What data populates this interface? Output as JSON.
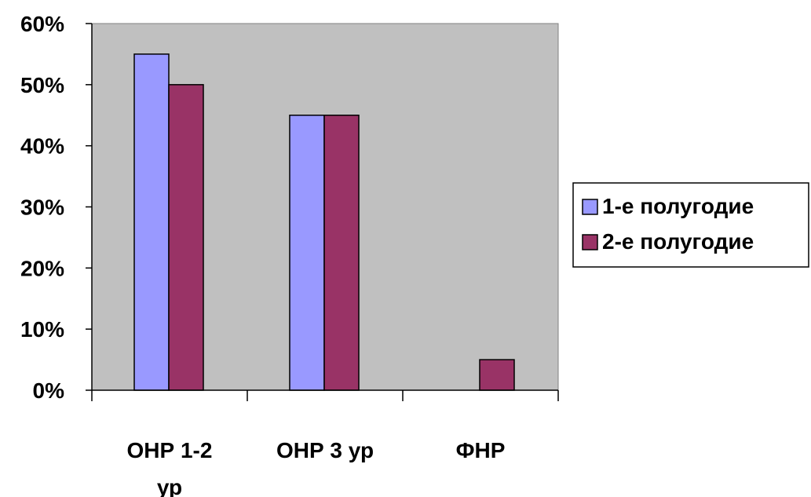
{
  "chart_data": {
    "type": "bar",
    "categories": [
      "ОНР 1-2 ур",
      "ОНР 3 ур",
      "ФНР"
    ],
    "category_lines": [
      [
        "ОНР 1-2",
        "ур"
      ],
      [
        "ОНР 3 ур"
      ],
      [
        "ФНР"
      ]
    ],
    "series": [
      {
        "name": "1-е полугодие",
        "values": [
          0.55,
          0.45,
          0.0
        ],
        "color": "#9999ff"
      },
      {
        "name": "2-е полугодие",
        "values": [
          0.5,
          0.45,
          0.05
        ],
        "color": "#993366"
      }
    ],
    "ylim": [
      0,
      0.6
    ],
    "yticks": [
      0,
      0.1,
      0.2,
      0.3,
      0.4,
      0.5,
      0.6
    ],
    "ytick_labels": [
      "0%",
      "10%",
      "20%",
      "30%",
      "40%",
      "50%",
      "60%"
    ],
    "plot_background": "#c0c0c0",
    "grid": false,
    "legend_position": "right"
  }
}
